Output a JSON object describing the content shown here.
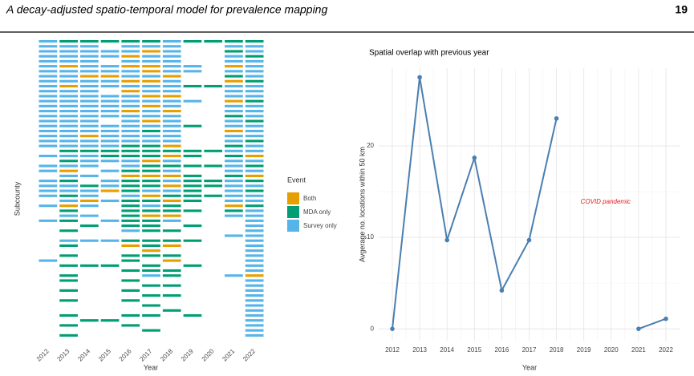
{
  "header": {
    "title": "A decay-adjusted spatio-temporal model for prevalence mapping",
    "page": "19"
  },
  "chart_data": [
    {
      "type": "tile",
      "x_label": "Year",
      "y_label": "Subcounty",
      "legend_title": "Event",
      "categories": [
        "2012",
        "2013",
        "2014",
        "2015",
        "2016",
        "2017",
        "2018",
        "2019",
        "2020",
        "2021",
        "2022"
      ],
      "series": [
        {
          "name": "Both",
          "color": "#E69F00"
        },
        {
          "name": "MDA only",
          "color": "#009E73"
        },
        {
          "name": "Survey only",
          "color": "#56B4E9"
        }
      ],
      "cells": [
        [
          2,
          2,
          2,
          2,
          2,
          2,
          2,
          2,
          2,
          2,
          2,
          2,
          2,
          2,
          2,
          2,
          2,
          2,
          2,
          2,
          2,
          2,
          null,
          2,
          null,
          2,
          2,
          null,
          2,
          2,
          2,
          2,
          null,
          2,
          null,
          null,
          2,
          null,
          null,
          null,
          null,
          null,
          null,
          null,
          2,
          null,
          null,
          null,
          null,
          null,
          null,
          null,
          null,
          null,
          null,
          null,
          null,
          null,
          null,
          null
        ],
        [
          1,
          2,
          2,
          2,
          2,
          0,
          2,
          2,
          2,
          0,
          2,
          2,
          2,
          2,
          2,
          2,
          2,
          2,
          2,
          2,
          2,
          2,
          1,
          2,
          1,
          2,
          0,
          2,
          1,
          2,
          2,
          1,
          2,
          0,
          1,
          2,
          1,
          null,
          1,
          null,
          2,
          1,
          null,
          1,
          null,
          1,
          null,
          1,
          1,
          null,
          1,
          null,
          1,
          null,
          null,
          1,
          null,
          1,
          null,
          1
        ],
        [
          1,
          2,
          2,
          2,
          2,
          2,
          2,
          0,
          2,
          2,
          2,
          2,
          2,
          2,
          2,
          2,
          2,
          2,
          2,
          0,
          2,
          2,
          1,
          2,
          2,
          2,
          null,
          2,
          null,
          1,
          2,
          2,
          0,
          2,
          null,
          2,
          null,
          1,
          null,
          null,
          2,
          null,
          null,
          null,
          null,
          1,
          null,
          null,
          null,
          null,
          null,
          null,
          null,
          null,
          null,
          null,
          1,
          null,
          null,
          null
        ],
        [
          1,
          null,
          2,
          2,
          null,
          2,
          2,
          0,
          2,
          2,
          null,
          2,
          2,
          2,
          2,
          2,
          null,
          2,
          2,
          2,
          2,
          2,
          1,
          1,
          2,
          null,
          2,
          null,
          2,
          2,
          0,
          null,
          2,
          null,
          null,
          null,
          2,
          null,
          null,
          null,
          2,
          null,
          null,
          null,
          null,
          1,
          null,
          null,
          null,
          null,
          null,
          null,
          null,
          null,
          null,
          null,
          1,
          null,
          null,
          null
        ],
        [
          1,
          2,
          2,
          0,
          2,
          0,
          2,
          2,
          0,
          2,
          0,
          2,
          2,
          2,
          0,
          2,
          2,
          2,
          2,
          2,
          2,
          1,
          1,
          1,
          2,
          2,
          1,
          0,
          1,
          1,
          1,
          2,
          1,
          1,
          1,
          1,
          1,
          1,
          2,
          null,
          1,
          0,
          null,
          1,
          1,
          null,
          1,
          null,
          1,
          null,
          1,
          null,
          1,
          null,
          null,
          1,
          null,
          1,
          null,
          null
        ],
        [
          1,
          2,
          0,
          2,
          2,
          0,
          0,
          2,
          0,
          2,
          2,
          0,
          2,
          0,
          2,
          2,
          0,
          2,
          1,
          2,
          2,
          1,
          1,
          1,
          0,
          1,
          1,
          0,
          1,
          1,
          2,
          0,
          1,
          2,
          1,
          0,
          1,
          1,
          1,
          null,
          1,
          1,
          0,
          1,
          null,
          1,
          1,
          2,
          null,
          1,
          null,
          1,
          null,
          1,
          null,
          1,
          null,
          null,
          1,
          null
        ],
        [
          2,
          2,
          2,
          2,
          2,
          2,
          2,
          0,
          2,
          2,
          2,
          0,
          2,
          2,
          0,
          2,
          2,
          2,
          2,
          2,
          2,
          0,
          1,
          0,
          2,
          1,
          2,
          0,
          2,
          0,
          2,
          1,
          0,
          1,
          1,
          0,
          2,
          null,
          1,
          null,
          1,
          0,
          null,
          1,
          0,
          null,
          1,
          1,
          null,
          1,
          null,
          1,
          null,
          null,
          1,
          null,
          null,
          null,
          null,
          null
        ],
        [
          1,
          null,
          null,
          null,
          null,
          2,
          2,
          null,
          null,
          1,
          null,
          null,
          2,
          null,
          null,
          null,
          null,
          1,
          null,
          null,
          null,
          null,
          1,
          1,
          null,
          1,
          null,
          1,
          1,
          1,
          1,
          1,
          1,
          null,
          1,
          null,
          null,
          1,
          null,
          null,
          1,
          null,
          null,
          null,
          null,
          1,
          null,
          null,
          null,
          null,
          null,
          null,
          null,
          null,
          null,
          1,
          null,
          null,
          null,
          null
        ],
        [
          1,
          null,
          null,
          null,
          null,
          null,
          null,
          null,
          null,
          1,
          null,
          null,
          null,
          null,
          null,
          null,
          null,
          null,
          null,
          null,
          null,
          null,
          1,
          null,
          null,
          1,
          null,
          null,
          1,
          1,
          null,
          1,
          null,
          null,
          null,
          null,
          null,
          null,
          null,
          null,
          null,
          null,
          null,
          null,
          null,
          null,
          null,
          null,
          null,
          null,
          null,
          null,
          null,
          null,
          null,
          null,
          null,
          null,
          null,
          null
        ],
        [
          1,
          2,
          1,
          2,
          2,
          0,
          2,
          1,
          0,
          2,
          2,
          2,
          0,
          2,
          2,
          1,
          2,
          2,
          0,
          2,
          2,
          1,
          2,
          1,
          2,
          2,
          2,
          1,
          2,
          2,
          2,
          2,
          2,
          0,
          1,
          2,
          null,
          null,
          null,
          2,
          null,
          null,
          null,
          null,
          null,
          null,
          null,
          2,
          null,
          null,
          null,
          null,
          null,
          null,
          null,
          null,
          null,
          null,
          null,
          null
        ],
        [
          1,
          2,
          2,
          1,
          2,
          2,
          2,
          2,
          1,
          2,
          2,
          2,
          1,
          2,
          2,
          2,
          1,
          2,
          2,
          2,
          1,
          2,
          2,
          0,
          2,
          1,
          2,
          0,
          1,
          2,
          1,
          2,
          2,
          1,
          2,
          2,
          2,
          2,
          2,
          2,
          2,
          2,
          2,
          2,
          2,
          2,
          2,
          0,
          2,
          2,
          2,
          2,
          2,
          2,
          2,
          2,
          2,
          2,
          2,
          2
        ]
      ]
    },
    {
      "type": "line",
      "title": "Spatial overlap with previous year",
      "x_label": "Year",
      "y_label": "Avgerage no. locations within 50 km",
      "categories": [
        "2012",
        "2013",
        "2014",
        "2015",
        "2016",
        "2017",
        "2018",
        "2019",
        "2020",
        "2021",
        "2022"
      ],
      "values": [
        0,
        27.5,
        9.7,
        18.7,
        4.2,
        9.7,
        23,
        null,
        null,
        0,
        1.1
      ],
      "color": "#4a7fb0",
      "ylim": [
        -1.3,
        28.5
      ],
      "yticks": [
        0,
        10,
        20
      ],
      "grid": true,
      "annotation": "COVID pandemic",
      "annotation_color": "#e41a1c"
    }
  ]
}
